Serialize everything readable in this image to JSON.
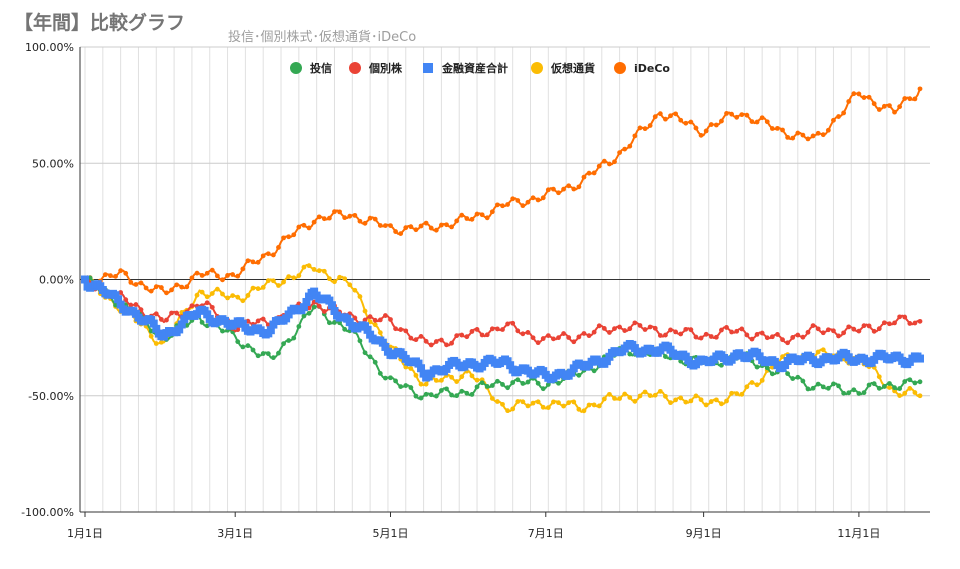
{
  "header": {
    "title": "【年間】比較グラフ",
    "subtitle": "投信･個別株式･仮想通貨･iDeCo"
  },
  "chart_data": {
    "type": "line",
    "title": "【年間】比較グラフ",
    "subtitle": "投信･個別株式･仮想通貨･iDeCo",
    "xlabel": "",
    "ylabel": "",
    "y_ticks": [
      "100.00%",
      "50.00%",
      "0.00%",
      "-50.00%",
      "-100.00%"
    ],
    "x_ticks": [
      "1月1日",
      "3月1日",
      "5月1日",
      "7月1日",
      "9月1日",
      "11月1日"
    ],
    "ylim": [
      -100,
      100
    ],
    "x": [
      "1/1",
      "1/15",
      "2/1",
      "2/15",
      "3/1",
      "3/15",
      "4/1",
      "4/15",
      "5/1",
      "5/15",
      "6/1",
      "6/15",
      "7/1",
      "7/15",
      "8/1",
      "8/15",
      "9/1",
      "9/15",
      "10/1",
      "10/15",
      "11/1",
      "11/15",
      "11/25"
    ],
    "legend_position": "top",
    "grid": true,
    "series": [
      {
        "name": "投信",
        "color": "#34a853",
        "marker": "circle",
        "values": [
          0,
          -10,
          -25,
          -16,
          -25,
          -35,
          -12,
          -22,
          -44,
          -50,
          -48,
          -44,
          -45,
          -40,
          -30,
          -32,
          -36,
          -33,
          -40,
          -46,
          -48,
          -45,
          -44
        ]
      },
      {
        "name": "個別株",
        "color": "#ea4335",
        "marker": "circle",
        "values": [
          0,
          -8,
          -18,
          -10,
          -20,
          -18,
          -10,
          -16,
          -18,
          -28,
          -24,
          -20,
          -26,
          -24,
          -20,
          -22,
          -24,
          -22,
          -26,
          -22,
          -22,
          -18,
          -18
        ]
      },
      {
        "name": "金融資産合計",
        "color": "#4285f4",
        "marker": "square",
        "values": [
          0,
          -10,
          -24,
          -14,
          -20,
          -22,
          -6,
          -18,
          -30,
          -40,
          -36,
          -36,
          -42,
          -38,
          -30,
          -30,
          -36,
          -32,
          -36,
          -34,
          -34,
          -34,
          -34
        ]
      },
      {
        "name": "仮想通貨",
        "color": "#fbbc04",
        "marker": "circle",
        "values": [
          0,
          -12,
          -28,
          -5,
          -8,
          -2,
          5,
          -2,
          -30,
          -45,
          -40,
          -55,
          -53,
          -55,
          -50,
          -50,
          -53,
          -50,
          -35,
          -32,
          -34,
          -48,
          -50
        ]
      },
      {
        "name": "iDeCo",
        "color": "#ff6d01",
        "marker": "circle",
        "values": [
          0,
          2,
          -6,
          2,
          2,
          12,
          26,
          28,
          22,
          22,
          26,
          32,
          36,
          42,
          56,
          72,
          64,
          72,
          64,
          60,
          80,
          72,
          82
        ]
      }
    ]
  }
}
